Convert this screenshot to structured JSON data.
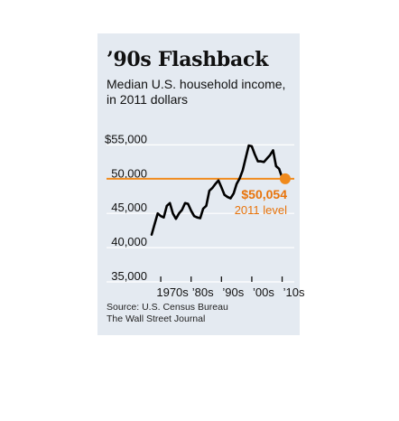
{
  "title": "’90s Flashback",
  "subtitle": "Median U.S. household income, in 2011 dollars",
  "source_lines": [
    "Source: U.S. Census Bureau",
    "The Wall Street Journal"
  ],
  "colors": {
    "background": "#e4eaf1",
    "line": "#000000",
    "reference": "#f08a1c",
    "annotation": "#e8740c"
  },
  "chart_data": {
    "type": "line",
    "title": "’90s Flashback",
    "subtitle": "Median U.S. household income, in 2011 dollars",
    "xlabel": "",
    "ylabel": "",
    "xlim": [
      1967,
      2014
    ],
    "ylim": [
      35000,
      56500
    ],
    "y_ticks": [
      {
        "value": 55000,
        "label": "$55,000"
      },
      {
        "value": 50000,
        "label": "50,000"
      },
      {
        "value": 45000,
        "label": "45,000"
      },
      {
        "value": 40000,
        "label": "40,000"
      },
      {
        "value": 35000,
        "label": "35,000"
      }
    ],
    "x_ticks": [
      {
        "value": 1970,
        "label": "1970s"
      },
      {
        "value": 1980,
        "label": "’80s"
      },
      {
        "value": 1990,
        "label": "’90s"
      },
      {
        "value": 2000,
        "label": "’00s"
      },
      {
        "value": 2010,
        "label": "’10s"
      }
    ],
    "grid": true,
    "series": [
      {
        "x": [
          1967,
          1968,
          1969,
          1970,
          1971,
          1972,
          1973,
          1974,
          1975,
          1976,
          1977,
          1978,
          1979,
          1980,
          1981,
          1982,
          1983,
          1984,
          1985,
          1986,
          1987,
          1988,
          1989,
          1990,
          1991,
          1992,
          1993,
          1994,
          1995,
          1996,
          1997,
          1998,
          1999,
          2000,
          2001,
          2002,
          2003,
          2004,
          2005,
          2006,
          2007,
          2008,
          2009,
          2010,
          2011
        ],
        "y": [
          41900,
          43500,
          45000,
          44600,
          44400,
          46100,
          46500,
          45000,
          44200,
          45000,
          45500,
          46500,
          46400,
          45400,
          44600,
          44400,
          44300,
          45700,
          46100,
          48300,
          48700,
          49300,
          49800,
          48800,
          47700,
          47400,
          47200,
          47900,
          49300,
          50100,
          51300,
          53100,
          54900,
          54800,
          53600,
          52600,
          52600,
          52500,
          53000,
          53500,
          54200,
          51900,
          51500,
          50200,
          50054
        ]
      }
    ],
    "reference_line": {
      "value": 50054
    },
    "annotations": [
      {
        "x": 2011,
        "y": 50054,
        "label": "$50,054",
        "sublabel": "2011 level"
      }
    ]
  }
}
